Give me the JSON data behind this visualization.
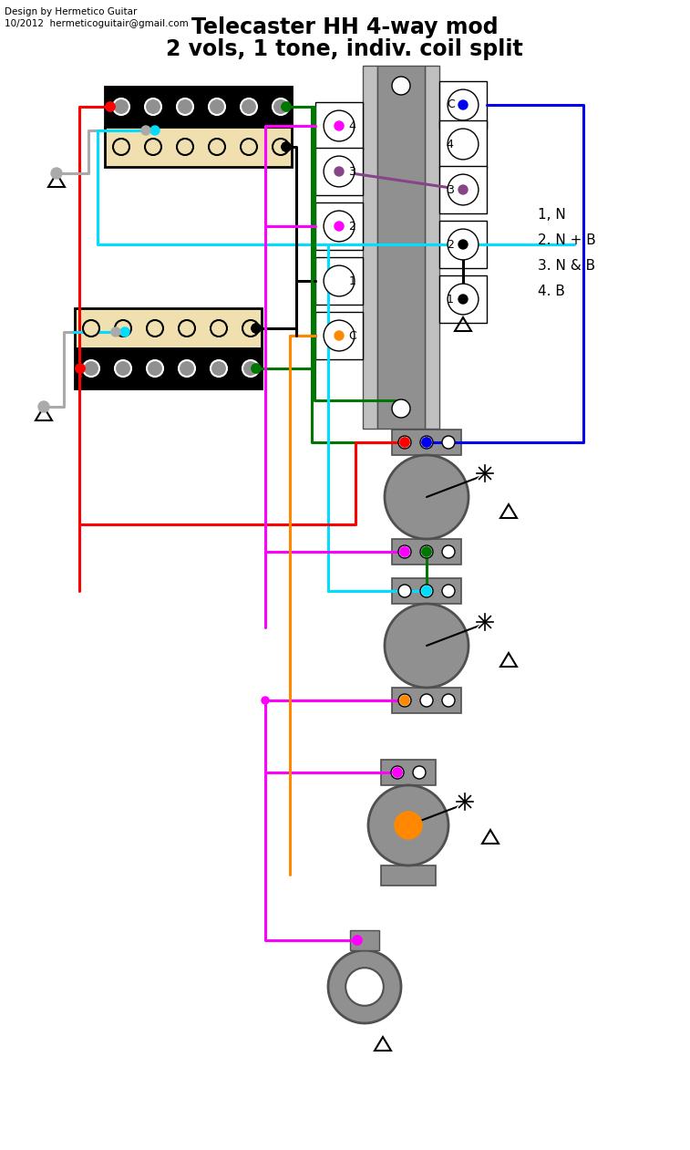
{
  "title1": "Telecaster HH 4-way mod",
  "title2": "2 vols, 1 tone, indiv. coil split",
  "credit1": "Design by Hermetico Guitar",
  "credit2": "10/2012  hermeticoguitair@gmail.com",
  "legend": [
    "1, N",
    "2. N + B",
    "3. N & B",
    "4. B"
  ],
  "bg": "#ffffff",
  "RED": "#ff0000",
  "GREEN": "#007700",
  "CYAN": "#00ddff",
  "BLUE": "#0000ee",
  "MAG": "#ff00ff",
  "ORG": "#ff8800",
  "BLK": "#000000",
  "GRY": "#909090",
  "LGRY": "#c0c0c0",
  "DGRY": "#505050",
  "WHT": "#ffffff",
  "CRM": "#f0e0b0",
  "PUR": "#884488",
  "SGRY": "#aaaaaa"
}
